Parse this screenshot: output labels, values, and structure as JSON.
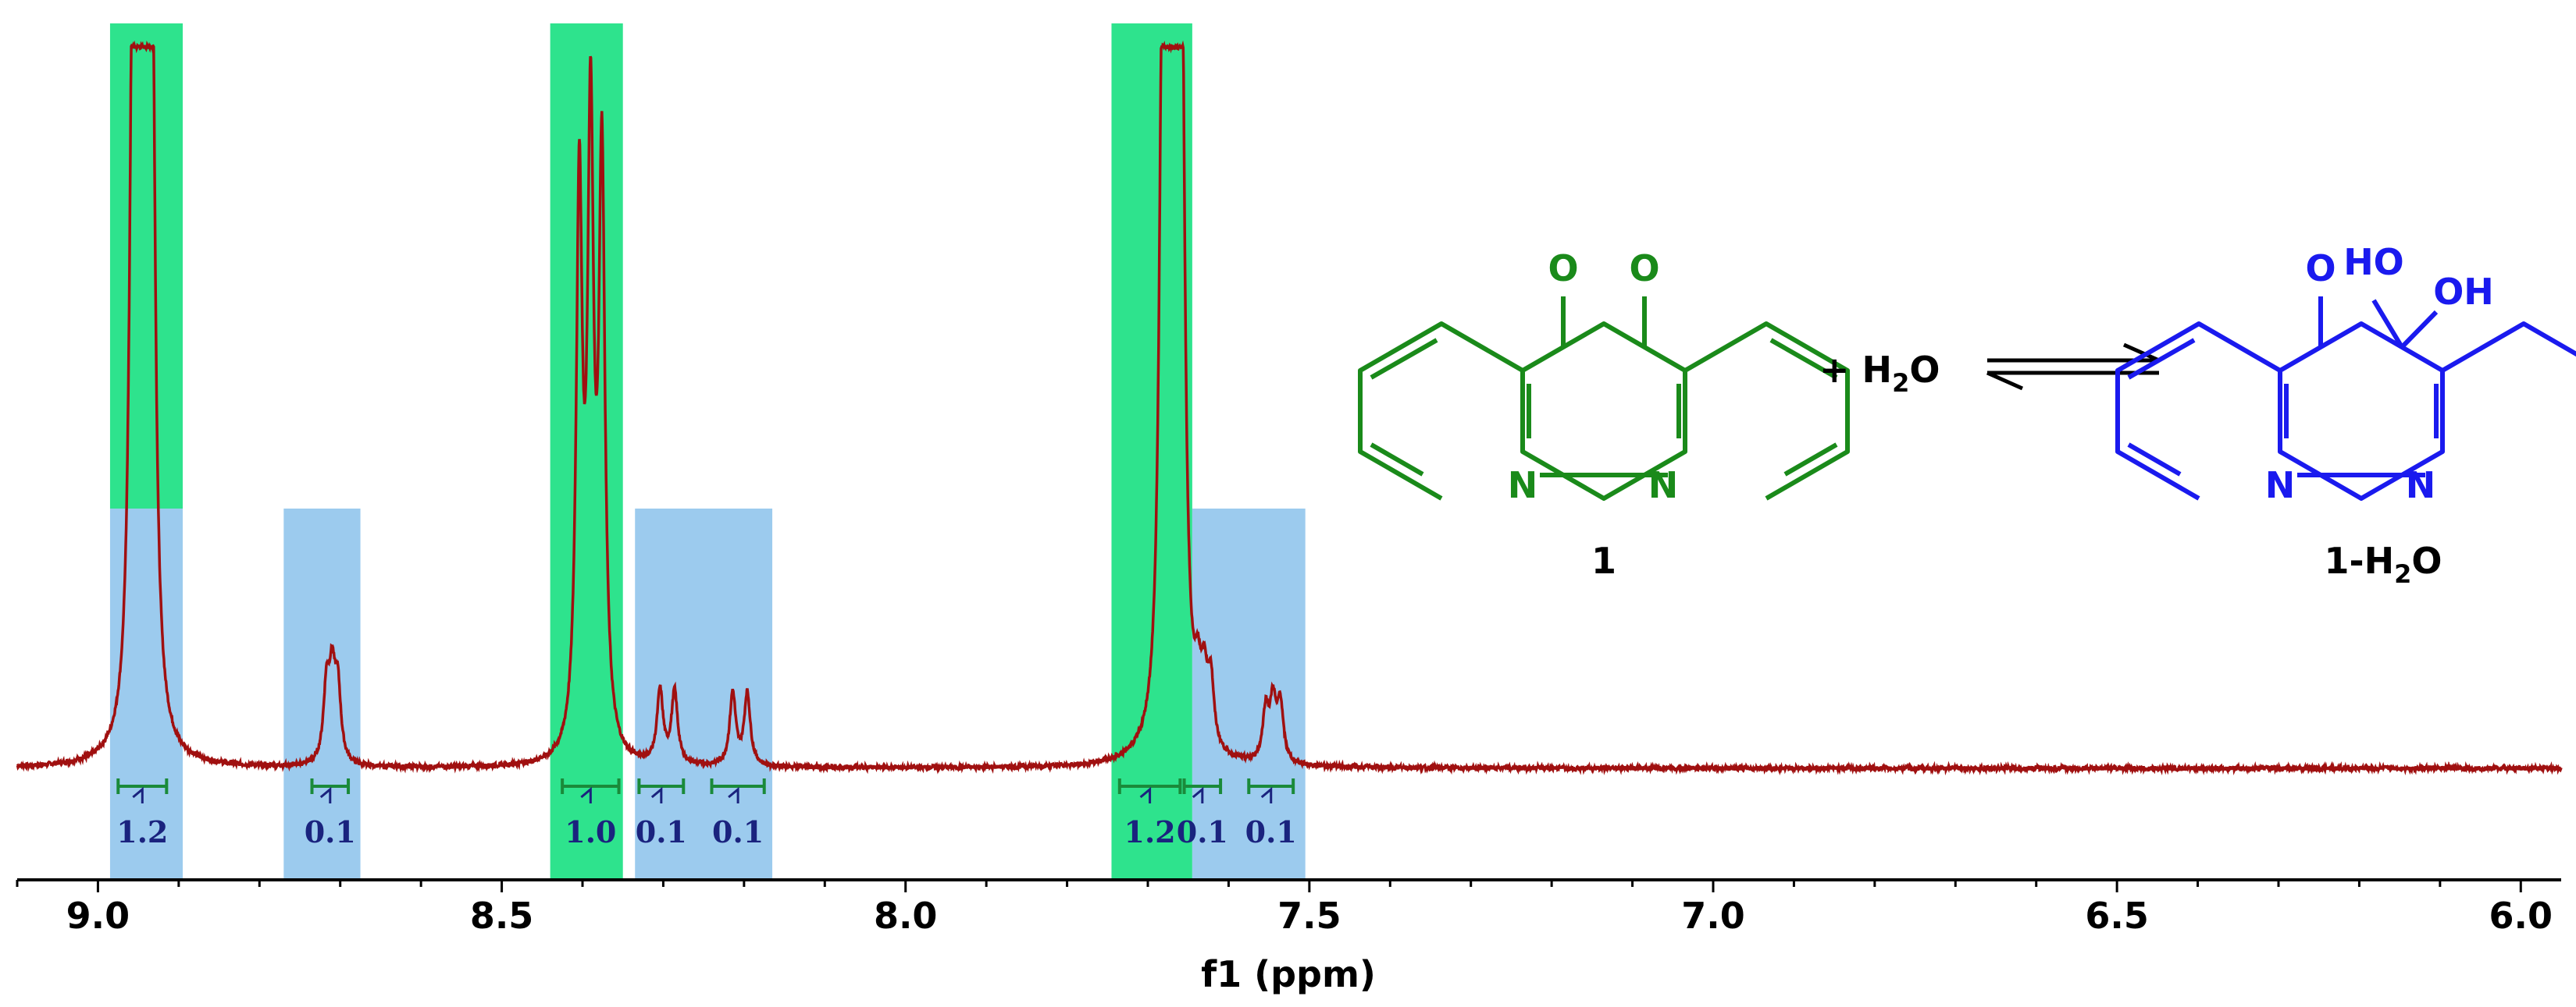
{
  "chart_data": {
    "type": "line",
    "xlabel": "f1 (ppm)",
    "xlim": [
      9.1,
      5.95
    ],
    "x_reversed": true,
    "xticks": [
      "9.0",
      "8.5",
      "8.0",
      "7.5",
      "7.0",
      "6.5",
      "6.0"
    ],
    "tick_values": [
      9.0,
      8.5,
      8.0,
      7.5,
      7.0,
      6.5,
      6.0
    ],
    "grid": false,
    "spectrum_color": "#a01010",
    "peaks": [
      {
        "center": 8.945,
        "height": 1.0,
        "multiplet": [
          [
            -0.012,
            0.93
          ],
          [
            -0.004,
            0.99
          ],
          [
            0.004,
            1.0
          ],
          [
            0.012,
            0.88
          ]
        ]
      },
      {
        "center": 8.71,
        "height": 0.1,
        "multiplet": [
          [
            -0.007,
            0.1
          ],
          [
            0.0,
            0.11
          ],
          [
            0.007,
            0.1
          ]
        ]
      },
      {
        "center": 8.39,
        "height": 0.85,
        "multiplet": [
          [
            -0.014,
            0.81
          ],
          [
            0.0,
            0.84
          ],
          [
            0.014,
            0.77
          ]
        ]
      },
      {
        "center": 8.295,
        "height": 0.1,
        "multiplet": [
          [
            -0.009,
            0.1
          ],
          [
            0.009,
            0.1
          ]
        ]
      },
      {
        "center": 8.205,
        "height": 0.1,
        "multiplet": [
          [
            -0.009,
            0.1
          ],
          [
            0.009,
            0.1
          ]
        ]
      },
      {
        "center": 7.67,
        "height": 0.98,
        "multiplet": [
          [
            -0.012,
            0.9
          ],
          [
            -0.004,
            0.97
          ],
          [
            0.004,
            0.95
          ],
          [
            0.012,
            0.86
          ]
        ]
      },
      {
        "center": 7.63,
        "height": 0.09,
        "multiplet": [
          [
            -0.008,
            0.09
          ],
          [
            0.0,
            0.08
          ],
          [
            0.008,
            0.07
          ]
        ]
      },
      {
        "center": 7.545,
        "height": 0.08,
        "multiplet": [
          [
            -0.009,
            0.08
          ],
          [
            0.0,
            0.08
          ],
          [
            0.009,
            0.07
          ]
        ]
      }
    ],
    "highlight_bands": [
      {
        "from": 8.985,
        "to": 8.895,
        "color": "#2ee38d",
        "level": "full"
      },
      {
        "from": 8.985,
        "to": 8.895,
        "color": "#9ccbee",
        "level": "lower"
      },
      {
        "from": 8.77,
        "to": 8.675,
        "color": "#9ccbee",
        "level": "lower"
      },
      {
        "from": 8.44,
        "to": 8.35,
        "color": "#2ee38d",
        "level": "full"
      },
      {
        "from": 8.335,
        "to": 8.165,
        "color": "#9ccbee",
        "level": "lower"
      },
      {
        "from": 7.745,
        "to": 7.645,
        "color": "#2ee38d",
        "level": "full"
      },
      {
        "from": 7.645,
        "to": 7.505,
        "color": "#9ccbee",
        "level": "lower"
      }
    ],
    "integrals": [
      {
        "from": 8.975,
        "to": 8.915,
        "label": "1.2",
        "color": "#1a8a3a"
      },
      {
        "from": 8.735,
        "to": 8.69,
        "label": "0.1",
        "color": "#1a8a3a"
      },
      {
        "from": 8.425,
        "to": 8.355,
        "label": "1.0",
        "color": "#1a8a3a"
      },
      {
        "from": 8.33,
        "to": 8.275,
        "label": "0.1",
        "color": "#1a8a3a"
      },
      {
        "from": 8.24,
        "to": 8.175,
        "label": "0.1",
        "color": "#1a8a3a"
      },
      {
        "from": 7.735,
        "to": 7.66,
        "label": "1.2",
        "color": "#1a8a3a"
      },
      {
        "from": 7.655,
        "to": 7.61,
        "label": "0.1",
        "color": "#1a8a3a"
      },
      {
        "from": 7.575,
        "to": 7.52,
        "label": "0.1",
        "color": "#1a8a3a"
      }
    ]
  },
  "scheme": {
    "compound1": {
      "label": "1",
      "color": "#1a8a1a",
      "atoms": {
        "o1": "O",
        "o2": "O",
        "n1": "N",
        "n2": "N"
      }
    },
    "reagent": {
      "prefix": "+ H",
      "sub": "2",
      "suffix": "O"
    },
    "compound2": {
      "label_main": "1-H",
      "label_sub": "2",
      "label_suffix": "O",
      "color": "#1a1aee",
      "atoms": {
        "o1": "O",
        "ho1": "HO",
        "oh": "OH",
        "n1": "N",
        "n2": "N"
      }
    }
  }
}
